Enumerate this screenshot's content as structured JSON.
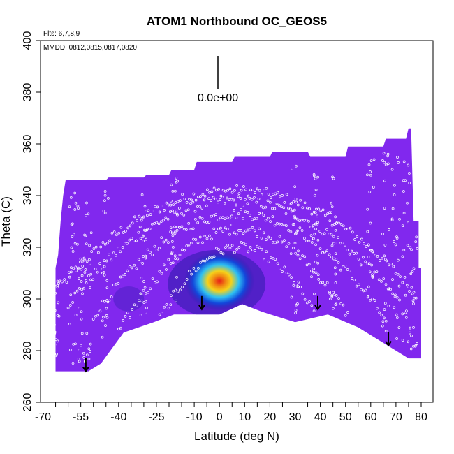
{
  "chart_data": {
    "type": "heatmap",
    "title": "ATOM1 Northbound OC_GEOS5",
    "xlabel": "Latitude (deg N)",
    "ylabel": "Theta (C)",
    "annotations": {
      "flights": "Flts: 6,7,8,9",
      "dates": "MMDD: 0812,0815,0817,0820",
      "scale": "0.0e+00"
    },
    "xlim": [
      -70,
      80
    ],
    "ylim": [
      260,
      400
    ],
    "x_ticks": [
      -70,
      -55,
      -40,
      -25,
      -10,
      0,
      10,
      20,
      30,
      40,
      50,
      60,
      70,
      80
    ],
    "x_minor_step": 5,
    "y_ticks": [
      260,
      280,
      300,
      320,
      340,
      360,
      380,
      400
    ],
    "grid": false,
    "colors": {
      "background_field": "#8128ee",
      "plume_outer": "#2a1aa8",
      "plume_mid": "#1248dc",
      "plume_cyan": "#2ec0f2",
      "plume_yellow": "#f6d21a",
      "plume_orange": "#f08a12",
      "plume_red": "#e81c18",
      "points": "#ffffff",
      "arrows": "#000000"
    },
    "field_upper_boundary": [
      [
        -65,
        312
      ],
      [
        -64,
        317
      ],
      [
        -63,
        330
      ],
      [
        -62,
        340
      ],
      [
        -61,
        346
      ],
      [
        -50,
        346
      ],
      [
        -45,
        346
      ],
      [
        -44,
        347
      ],
      [
        -30,
        347
      ],
      [
        -29,
        348
      ],
      [
        -20,
        348
      ],
      [
        -19,
        350
      ],
      [
        -10,
        350
      ],
      [
        -9,
        353
      ],
      [
        5,
        353
      ],
      [
        6,
        355
      ],
      [
        20,
        355
      ],
      [
        21,
        357
      ],
      [
        35,
        357
      ],
      [
        36,
        355
      ],
      [
        50,
        355
      ],
      [
        51,
        359
      ],
      [
        65,
        359
      ],
      [
        66,
        362
      ],
      [
        74,
        362
      ],
      [
        75,
        366
      ],
      [
        76,
        366
      ],
      [
        77,
        330
      ],
      [
        79,
        330
      ],
      [
        79,
        312
      ],
      [
        80,
        312
      ]
    ],
    "field_lower_boundary": [
      [
        -65,
        272
      ],
      [
        -52,
        272
      ],
      [
        -47,
        275
      ],
      [
        -38,
        287
      ],
      [
        -26,
        291
      ],
      [
        -18,
        294
      ],
      [
        -8,
        294
      ],
      [
        0,
        294
      ],
      [
        9,
        298
      ],
      [
        17,
        295
      ],
      [
        30,
        291
      ],
      [
        43,
        294
      ],
      [
        55,
        289
      ],
      [
        65,
        283
      ],
      [
        75,
        277
      ],
      [
        80,
        277
      ]
    ],
    "plume": {
      "center_lat": 0,
      "center_theta": 308,
      "lat_range": [
        -20,
        11
      ],
      "theta_range": [
        294,
        319
      ]
    },
    "min_markers_lat_theta": [
      [
        -53,
        272
      ],
      [
        -7,
        296
      ],
      [
        39,
        296
      ],
      [
        67,
        282
      ]
    ]
  }
}
